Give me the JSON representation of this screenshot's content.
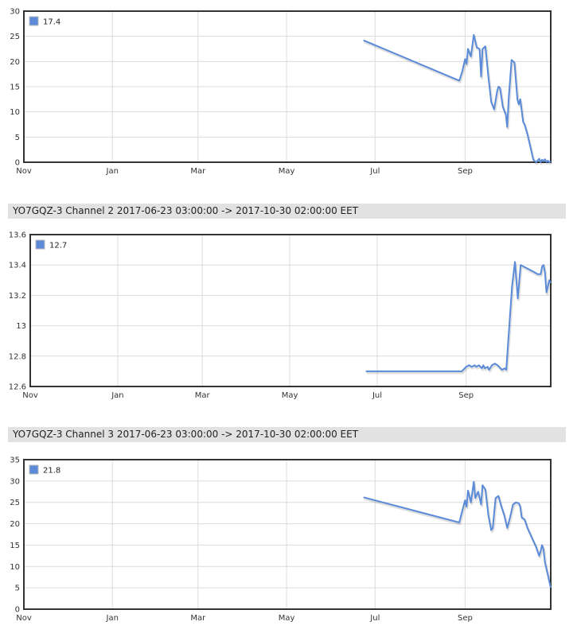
{
  "panels": [
    {
      "header": ""
    },
    {
      "header": "YO7GQZ-3 Channel 2 2017-06-23 03:00:00 -> 2017-10-30 02:00:00 EET"
    },
    {
      "header": "YO7GQZ-3 Channel 3 2017-06-23 03:00:00 -> 2017-10-30 02:00:00 EET"
    }
  ],
  "chart_data": [
    {
      "type": "line",
      "x_tick_labels": [
        "Nov",
        "Jan",
        "Mar",
        "May",
        "Jul",
        "Sep"
      ],
      "xlim": [
        "2016-11-01",
        "2017-10-30"
      ],
      "y_ticks": [
        0,
        5,
        10,
        15,
        20,
        25,
        30
      ],
      "ylim": [
        0,
        30
      ],
      "grid": true,
      "legend_position": "top-left",
      "series": [
        {
          "name": "17.4",
          "color": "#5a8ad8",
          "x": [
            "2017-06-23",
            "2017-08-28",
            "2017-08-30",
            "2017-09-01",
            "2017-09-02",
            "2017-09-03",
            "2017-09-05",
            "2017-09-07",
            "2017-09-09",
            "2017-09-11",
            "2017-09-12",
            "2017-09-13",
            "2017-09-15",
            "2017-09-17",
            "2017-09-19",
            "2017-09-21",
            "2017-09-23",
            "2017-09-24",
            "2017-09-25",
            "2017-09-27",
            "2017-09-29",
            "2017-09-30",
            "2017-10-01",
            "2017-10-03",
            "2017-10-05",
            "2017-10-07",
            "2017-10-08",
            "2017-10-09",
            "2017-10-11",
            "2017-10-12",
            "2017-10-14",
            "2017-10-16",
            "2017-10-18",
            "2017-10-20",
            "2017-10-22",
            "2017-10-23",
            "2017-10-24",
            "2017-10-25",
            "2017-10-26",
            "2017-10-27",
            "2017-10-28",
            "2017-10-29",
            "2017-10-30"
          ],
          "values": [
            24.2,
            16.2,
            18.0,
            20.5,
            19.5,
            22.5,
            21.0,
            25.3,
            22.8,
            22.5,
            17.0,
            22.5,
            23.0,
            17.0,
            12.0,
            10.5,
            14.0,
            15.0,
            14.8,
            11.0,
            9.5,
            7.0,
            12.5,
            20.3,
            19.8,
            12.5,
            11.5,
            12.5,
            8.0,
            7.5,
            5.5,
            3.0,
            0.5,
            0.0,
            0.7,
            0.0,
            0.5,
            0.2,
            0.6,
            0.1,
            0.3,
            0.0,
            0.2
          ]
        }
      ]
    },
    {
      "type": "line",
      "x_tick_labels": [
        "Nov",
        "Jan",
        "Mar",
        "May",
        "Jul",
        "Sep"
      ],
      "xlim": [
        "2016-11-01",
        "2017-10-30"
      ],
      "y_ticks": [
        12.6,
        12.8,
        13.0,
        13.2,
        13.4,
        13.6
      ],
      "ylim": [
        12.6,
        13.6
      ],
      "grid": true,
      "legend_position": "top-left",
      "series": [
        {
          "name": "12.7",
          "color": "#5a8ad8",
          "x": [
            "2017-06-23",
            "2017-08-29",
            "2017-09-01",
            "2017-09-03",
            "2017-09-05",
            "2017-09-07",
            "2017-09-08",
            "2017-09-10",
            "2017-09-12",
            "2017-09-13",
            "2017-09-14",
            "2017-09-16",
            "2017-09-17",
            "2017-09-19",
            "2017-09-21",
            "2017-09-23",
            "2017-09-25",
            "2017-09-26",
            "2017-09-28",
            "2017-09-29",
            "2017-10-03",
            "2017-10-05",
            "2017-10-07",
            "2017-10-09",
            "2017-10-11",
            "2017-10-13",
            "2017-10-15",
            "2017-10-17",
            "2017-10-19",
            "2017-10-21",
            "2017-10-23",
            "2017-10-24",
            "2017-10-25",
            "2017-10-26",
            "2017-10-27",
            "2017-10-29",
            "2017-10-30"
          ],
          "values": [
            12.7,
            12.7,
            12.73,
            12.74,
            12.73,
            12.74,
            12.73,
            12.74,
            12.72,
            12.74,
            12.72,
            12.73,
            12.71,
            12.74,
            12.75,
            12.74,
            12.72,
            12.71,
            12.72,
            12.71,
            13.26,
            13.42,
            13.18,
            13.4,
            13.39,
            13.38,
            13.37,
            13.36,
            13.35,
            13.34,
            13.34,
            13.39,
            13.4,
            13.35,
            13.22,
            13.3,
            13.28
          ]
        }
      ]
    },
    {
      "type": "line",
      "x_tick_labels": [
        "Nov",
        "Jan",
        "Mar",
        "May",
        "Jul",
        "Sep"
      ],
      "xlim": [
        "2016-11-01",
        "2017-10-30"
      ],
      "y_ticks": [
        0,
        5,
        10,
        15,
        20,
        25,
        30,
        35
      ],
      "ylim": [
        0,
        35
      ],
      "grid": true,
      "legend_position": "top-left",
      "series": [
        {
          "name": "21.8",
          "color": "#5a8ad8",
          "x": [
            "2017-06-23",
            "2017-08-28",
            "2017-08-30",
            "2017-09-01",
            "2017-09-02",
            "2017-09-03",
            "2017-09-05",
            "2017-09-07",
            "2017-09-08",
            "2017-09-10",
            "2017-09-12",
            "2017-09-13",
            "2017-09-15",
            "2017-09-17",
            "2017-09-19",
            "2017-09-20",
            "2017-09-22",
            "2017-09-24",
            "2017-09-26",
            "2017-09-28",
            "2017-09-30",
            "2017-10-02",
            "2017-10-04",
            "2017-10-06",
            "2017-10-08",
            "2017-10-09",
            "2017-10-10",
            "2017-10-12",
            "2017-10-14",
            "2017-10-16",
            "2017-10-18",
            "2017-10-20",
            "2017-10-22",
            "2017-10-23",
            "2017-10-24",
            "2017-10-25",
            "2017-10-26",
            "2017-10-27",
            "2017-10-28",
            "2017-10-29",
            "2017-10-30"
          ],
          "values": [
            26.2,
            20.3,
            23.0,
            25.5,
            24.0,
            27.8,
            25.0,
            29.8,
            26.0,
            27.5,
            24.5,
            29.0,
            28.0,
            22.0,
            18.5,
            19.0,
            26.0,
            26.5,
            24.0,
            22.0,
            19.0,
            21.5,
            24.5,
            25.0,
            24.8,
            24.0,
            21.5,
            21.0,
            19.0,
            17.5,
            16.0,
            14.5,
            12.5,
            13.5,
            15.0,
            14.0,
            11.0,
            9.5,
            8.0,
            6.5,
            5.0
          ]
        }
      ]
    }
  ]
}
